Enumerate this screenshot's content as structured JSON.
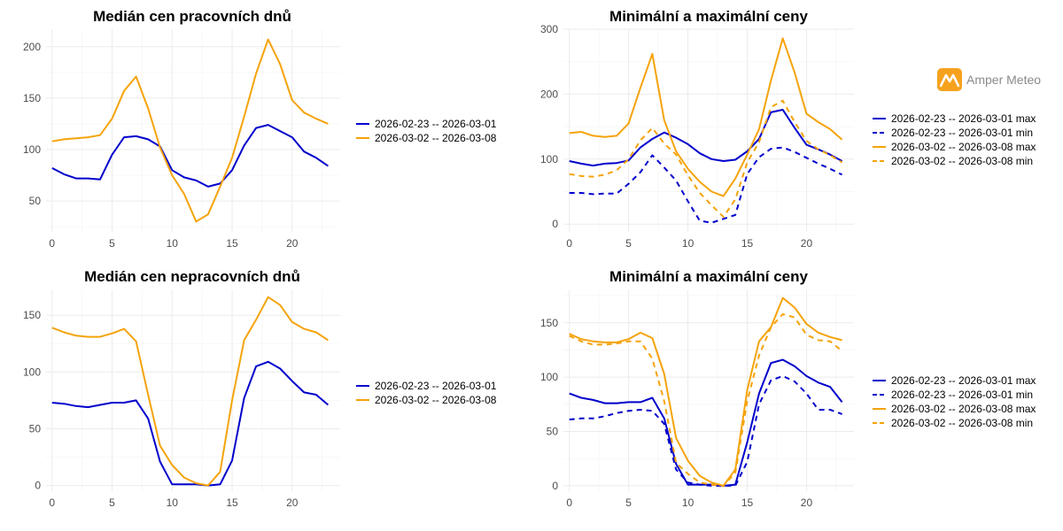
{
  "colors": {
    "blue": "#0000cc",
    "orange": "#f5a30a",
    "logo": "#f6a21e"
  },
  "logo": {
    "text": "Amper Meteo",
    "icon": "mountain-logo-icon"
  },
  "chart_data": [
    {
      "type": "line",
      "title": "Medián cen pracovních dnů",
      "xlabel": "",
      "ylabel": "",
      "xlim": [
        -0.5,
        24
      ],
      "ylim": [
        20,
        217
      ],
      "xticks": [
        0,
        5,
        10,
        15,
        20
      ],
      "yticks": [
        50,
        100,
        150,
        200
      ],
      "x": [
        0,
        1,
        2,
        3,
        4,
        5,
        6,
        7,
        8,
        9,
        10,
        11,
        12,
        13,
        14,
        15,
        16,
        17,
        18,
        19,
        20,
        21,
        22,
        23
      ],
      "series": [
        {
          "name": "2026-02-23 -- 2026-03-01",
          "color": "#0000cc",
          "dash": false,
          "values": [
            82,
            76,
            72,
            72,
            71,
            95,
            112,
            113,
            110,
            103,
            80,
            73,
            70,
            64,
            67,
            80,
            104,
            121,
            124,
            118,
            112,
            98,
            92,
            84
          ]
        },
        {
          "name": "2026-03-02 -- 2026-03-08",
          "color": "#f5a30a",
          "dash": false,
          "values": [
            108,
            110,
            111,
            112,
            114,
            130,
            157,
            171,
            140,
            102,
            75,
            57,
            30,
            37,
            64,
            92,
            132,
            174,
            207,
            183,
            148,
            136,
            130,
            125
          ]
        }
      ]
    },
    {
      "type": "line",
      "title": "Minimální a maximální ceny",
      "xlabel": "",
      "ylabel": "",
      "xlim": [
        -0.5,
        24
      ],
      "ylim": [
        -12,
        300
      ],
      "xticks": [
        0,
        5,
        10,
        15,
        20
      ],
      "yticks": [
        0,
        100,
        200,
        300
      ],
      "x": [
        0,
        1,
        2,
        3,
        4,
        5,
        6,
        7,
        8,
        9,
        10,
        11,
        12,
        13,
        14,
        15,
        16,
        17,
        18,
        19,
        20,
        21,
        22,
        23
      ],
      "series": [
        {
          "name": "2026-02-23 -- 2026-03-01 max",
          "color": "#0000cc",
          "dash": false,
          "values": [
            97,
            93,
            90,
            93,
            94,
            98,
            118,
            131,
            141,
            133,
            123,
            109,
            100,
            97,
            99,
            112,
            131,
            172,
            176,
            148,
            122,
            115,
            107,
            97
          ]
        },
        {
          "name": "2026-02-23 -- 2026-03-01 min",
          "color": "#0000cc",
          "dash": true,
          "values": [
            48,
            48,
            46,
            47,
            47,
            62,
            80,
            106,
            87,
            67,
            35,
            5,
            2,
            8,
            14,
            77,
            103,
            116,
            118,
            111,
            102,
            93,
            85,
            76
          ]
        },
        {
          "name": "2026-03-02 -- 2026-03-08 max",
          "color": "#f5a30a",
          "dash": false,
          "values": [
            140,
            142,
            136,
            134,
            136,
            155,
            210,
            262,
            160,
            112,
            85,
            65,
            50,
            43,
            70,
            107,
            146,
            221,
            286,
            233,
            170,
            157,
            146,
            130
          ]
        },
        {
          "name": "2026-03-02 -- 2026-03-08 min",
          "color": "#f5a30a",
          "dash": true,
          "values": [
            77,
            74,
            73,
            76,
            83,
            100,
            129,
            148,
            124,
            107,
            75,
            48,
            29,
            11,
            38,
            95,
            126,
            180,
            190,
            157,
            128,
            115,
            106,
            95
          ]
        }
      ]
    },
    {
      "type": "line",
      "title": "Medián cen nepracovních dnů",
      "xlabel": "",
      "ylabel": "",
      "xlim": [
        -0.5,
        24
      ],
      "ylim": [
        -5,
        172
      ],
      "xticks": [
        0,
        5,
        10,
        15,
        20
      ],
      "yticks": [
        0,
        50,
        100,
        150
      ],
      "x": [
        0,
        1,
        2,
        3,
        4,
        5,
        6,
        7,
        8,
        9,
        10,
        11,
        12,
        13,
        14,
        15,
        16,
        17,
        18,
        19,
        20,
        21,
        22,
        23
      ],
      "series": [
        {
          "name": "2026-02-23 -- 2026-03-01",
          "color": "#0000cc",
          "dash": false,
          "values": [
            73,
            72,
            70,
            69,
            71,
            73,
            73,
            75,
            59,
            21,
            1,
            1,
            1,
            0,
            1,
            22,
            77,
            105,
            109,
            103,
            92,
            82,
            80,
            71
          ]
        },
        {
          "name": "2026-03-02 -- 2026-03-08",
          "color": "#f5a30a",
          "dash": false,
          "values": [
            139,
            135,
            132,
            131,
            131,
            134,
            138,
            127,
            80,
            35,
            18,
            7,
            2,
            0,
            12,
            75,
            128,
            146,
            166,
            159,
            144,
            138,
            135,
            128
          ]
        }
      ]
    },
    {
      "type": "line",
      "title": "Minimální a maximální ceny",
      "xlabel": "",
      "ylabel": "",
      "xlim": [
        -0.5,
        24
      ],
      "ylim": [
        -5,
        180
      ],
      "xticks": [
        0,
        5,
        10,
        15,
        20
      ],
      "yticks": [
        0,
        50,
        100,
        150
      ],
      "x": [
        0,
        1,
        2,
        3,
        4,
        5,
        6,
        7,
        8,
        9,
        10,
        11,
        12,
        13,
        14,
        15,
        16,
        17,
        18,
        19,
        20,
        21,
        22,
        23
      ],
      "series": [
        {
          "name": "2026-02-23 -- 2026-03-01 max",
          "color": "#0000cc",
          "dash": false,
          "values": [
            85,
            81,
            79,
            76,
            76,
            77,
            77,
            81,
            62,
            20,
            1,
            1,
            1,
            0,
            1,
            40,
            85,
            113,
            116,
            110,
            101,
            95,
            91,
            77
          ]
        },
        {
          "name": "2026-02-23 -- 2026-03-01 min",
          "color": "#0000cc",
          "dash": true,
          "values": [
            61,
            62,
            62,
            64,
            67,
            69,
            70,
            69,
            57,
            15,
            3,
            1,
            0,
            0,
            0,
            22,
            75,
            97,
            101,
            96,
            85,
            70,
            70,
            66
          ]
        },
        {
          "name": "2026-03-02 -- 2026-03-08 max",
          "color": "#f5a30a",
          "dash": false,
          "values": [
            140,
            135,
            133,
            132,
            132,
            135,
            141,
            136,
            103,
            44,
            23,
            9,
            3,
            0,
            15,
            88,
            133,
            146,
            173,
            164,
            149,
            141,
            137,
            134
          ]
        },
        {
          "name": "2026-03-02 -- 2026-03-08 min",
          "color": "#f5a30a",
          "dash": true,
          "values": [
            138,
            133,
            130,
            130,
            131,
            133,
            133,
            117,
            78,
            21,
            11,
            3,
            1,
            0,
            12,
            78,
            120,
            146,
            158,
            155,
            139,
            134,
            133,
            124
          ]
        }
      ]
    }
  ]
}
